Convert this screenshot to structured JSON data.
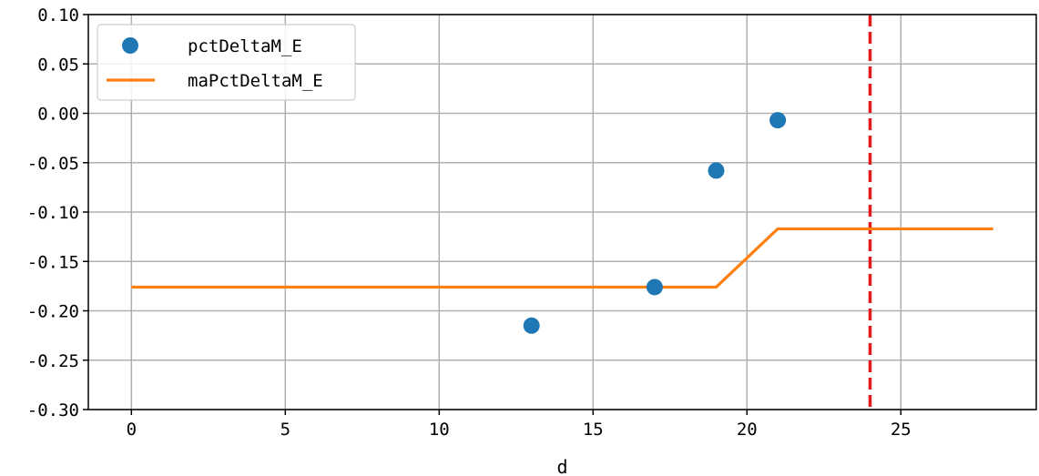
{
  "chart_data": {
    "type": "line",
    "xlabel": "d",
    "ylabel": "",
    "xlim": [
      -1.4,
      29.4
    ],
    "ylim": [
      -0.3,
      0.1
    ],
    "xticks": [
      0,
      5,
      10,
      15,
      20,
      25
    ],
    "yticks": [
      0.1,
      0.05,
      0.0,
      -0.05,
      -0.1,
      -0.15,
      -0.2,
      -0.25,
      -0.3
    ],
    "ytick_labels": [
      "0.10",
      "0.05",
      "0.00",
      "-0.05",
      "-0.10",
      "-0.15",
      "-0.20",
      "-0.25",
      "-0.30"
    ],
    "grid": true,
    "legend_position": "top-left",
    "series": [
      {
        "name": "pctDeltaM_E",
        "kind": "scatter",
        "color": "#1f77b4",
        "points": [
          [
            13,
            -0.215
          ],
          [
            17,
            -0.176
          ],
          [
            19,
            -0.058
          ],
          [
            21,
            -0.007
          ]
        ]
      },
      {
        "name": "maPctDeltaM_E",
        "kind": "line",
        "color": "#ff7f0e",
        "points": [
          [
            0,
            -0.176
          ],
          [
            19,
            -0.176
          ],
          [
            21,
            -0.117
          ],
          [
            28,
            -0.117
          ]
        ]
      }
    ],
    "reference_lines": [
      {
        "orientation": "vertical",
        "x": 24,
        "color": "#e41a1c",
        "style": "dashed"
      }
    ]
  }
}
